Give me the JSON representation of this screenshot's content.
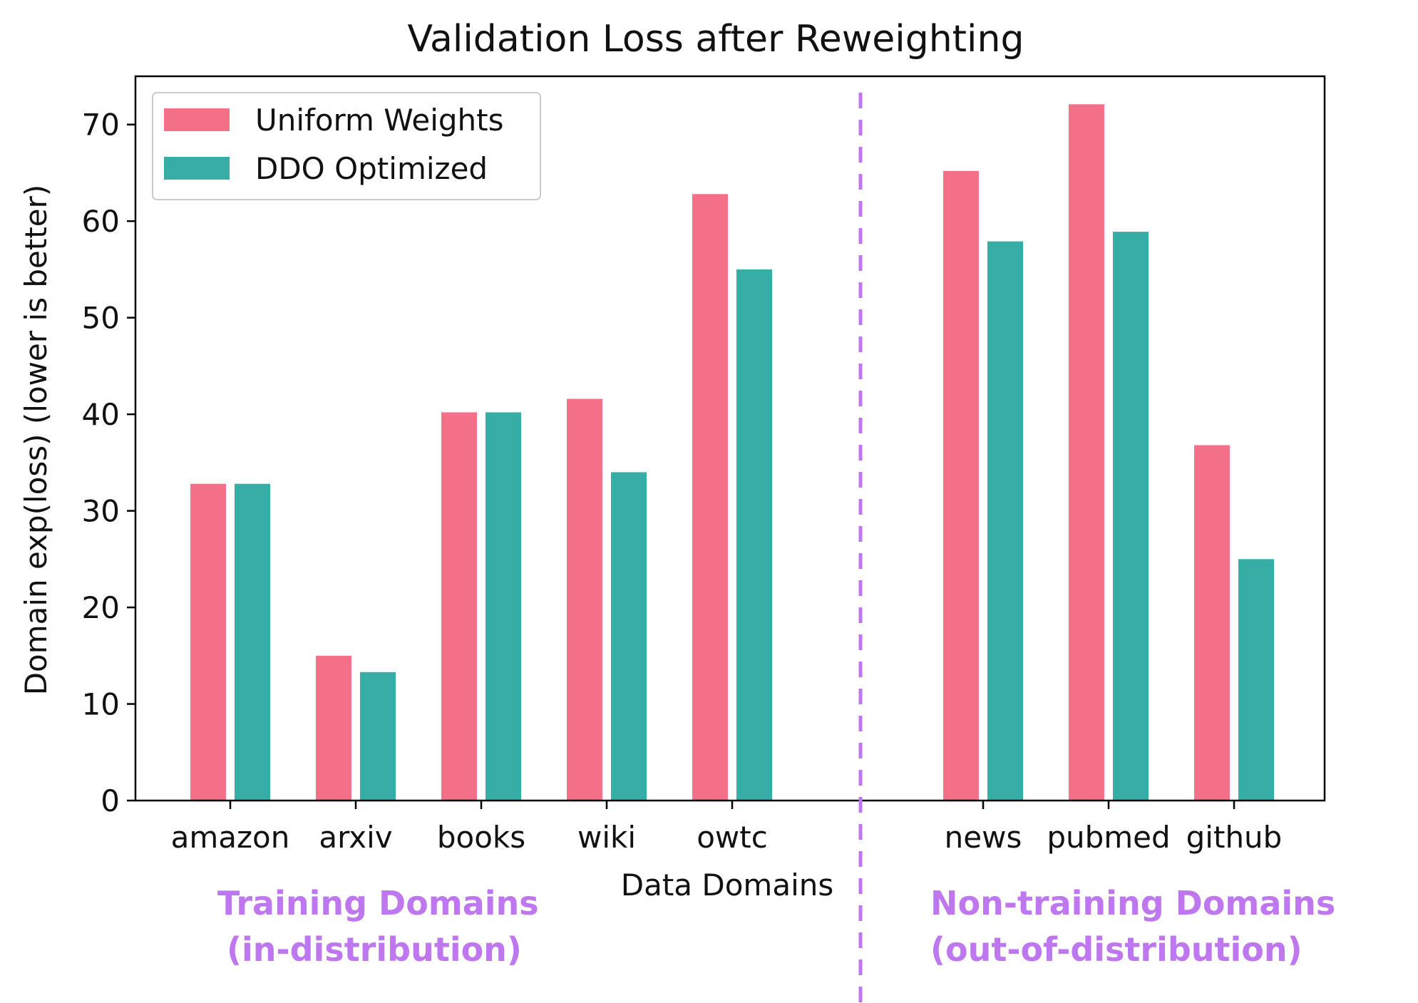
{
  "chart_data": {
    "type": "bar",
    "title": "Validation Loss after Reweighting",
    "xlabel": "Data Domains",
    "ylabel": "Domain exp(loss) (lower is better)",
    "ylim": [
      0,
      75
    ],
    "yticks": [
      0,
      10,
      20,
      30,
      40,
      50,
      60,
      70
    ],
    "categories": [
      "amazon",
      "arxiv",
      "books",
      "wiki",
      "owtc",
      "news",
      "pubmed",
      "github"
    ],
    "slots": [
      0,
      1,
      2,
      3,
      4,
      6,
      7,
      8
    ],
    "series": [
      {
        "name": "Uniform Weights",
        "color": "#f47088",
        "values": [
          32.8,
          15.0,
          40.2,
          41.6,
          62.8,
          65.2,
          72.1,
          36.8
        ]
      },
      {
        "name": "DDO Optimized",
        "color": "#38ada5",
        "values": [
          32.8,
          13.3,
          40.2,
          34.0,
          55.0,
          57.9,
          58.9,
          25.0
        ]
      }
    ],
    "legend_position": "top-left",
    "divider": {
      "style": "dashed",
      "color": "#bf77f0"
    },
    "annotations": [
      {
        "lines": [
          "Training Domains",
          "(in-distribution)"
        ],
        "color": "#bf77f0"
      },
      {
        "lines": [
          "Non-training Domains",
          "(out-of-distribution)"
        ],
        "color": "#bf77f0"
      }
    ]
  }
}
